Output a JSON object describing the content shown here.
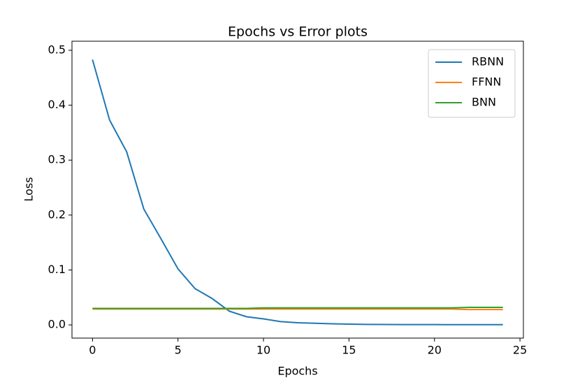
{
  "chart_data": {
    "type": "line",
    "title": "Epochs vs Error plots",
    "x_label": "Epochs",
    "y_label": "Loss",
    "x": [
      0,
      1,
      2,
      3,
      4,
      5,
      6,
      7,
      8,
      9,
      10,
      11,
      12,
      13,
      14,
      15,
      16,
      17,
      18,
      19,
      20,
      21,
      22,
      23,
      24
    ],
    "series": [
      {
        "name": "RBNN",
        "color": "#1f77b4",
        "values": [
          0.483,
          0.373,
          0.315,
          0.211,
          0.157,
          0.102,
          0.066,
          0.048,
          0.025,
          0.015,
          0.011,
          0.006,
          0.004,
          0.003,
          0.002,
          0.0015,
          0.001,
          0.0008,
          0.0007,
          0.0006,
          0.0006,
          0.0005,
          0.0005,
          0.0005,
          0.0005
        ]
      },
      {
        "name": "FFNN",
        "color": "#ff7f0e",
        "values": [
          0.029,
          0.029,
          0.029,
          0.029,
          0.029,
          0.029,
          0.029,
          0.029,
          0.029,
          0.029,
          0.029,
          0.029,
          0.029,
          0.029,
          0.029,
          0.029,
          0.029,
          0.029,
          0.029,
          0.029,
          0.029,
          0.029,
          0.028,
          0.028,
          0.028
        ]
      },
      {
        "name": "BNN",
        "color": "#2ca02c",
        "values": [
          0.03,
          0.03,
          0.03,
          0.03,
          0.03,
          0.03,
          0.03,
          0.03,
          0.03,
          0.03,
          0.031,
          0.031,
          0.031,
          0.031,
          0.031,
          0.031,
          0.031,
          0.031,
          0.031,
          0.031,
          0.031,
          0.031,
          0.032,
          0.032,
          0.032
        ]
      }
    ],
    "xlim": [
      -1.2,
      25.2
    ],
    "ylim": [
      -0.024,
      0.5165
    ],
    "xticks": [
      0,
      5,
      10,
      15,
      20,
      25
    ],
    "yticks": [
      {
        "value": 0,
        "label": "0.0"
      },
      0.1,
      0.2,
      0.3,
      0.4,
      0.5
    ],
    "legend": "upper right",
    "grid": false
  }
}
